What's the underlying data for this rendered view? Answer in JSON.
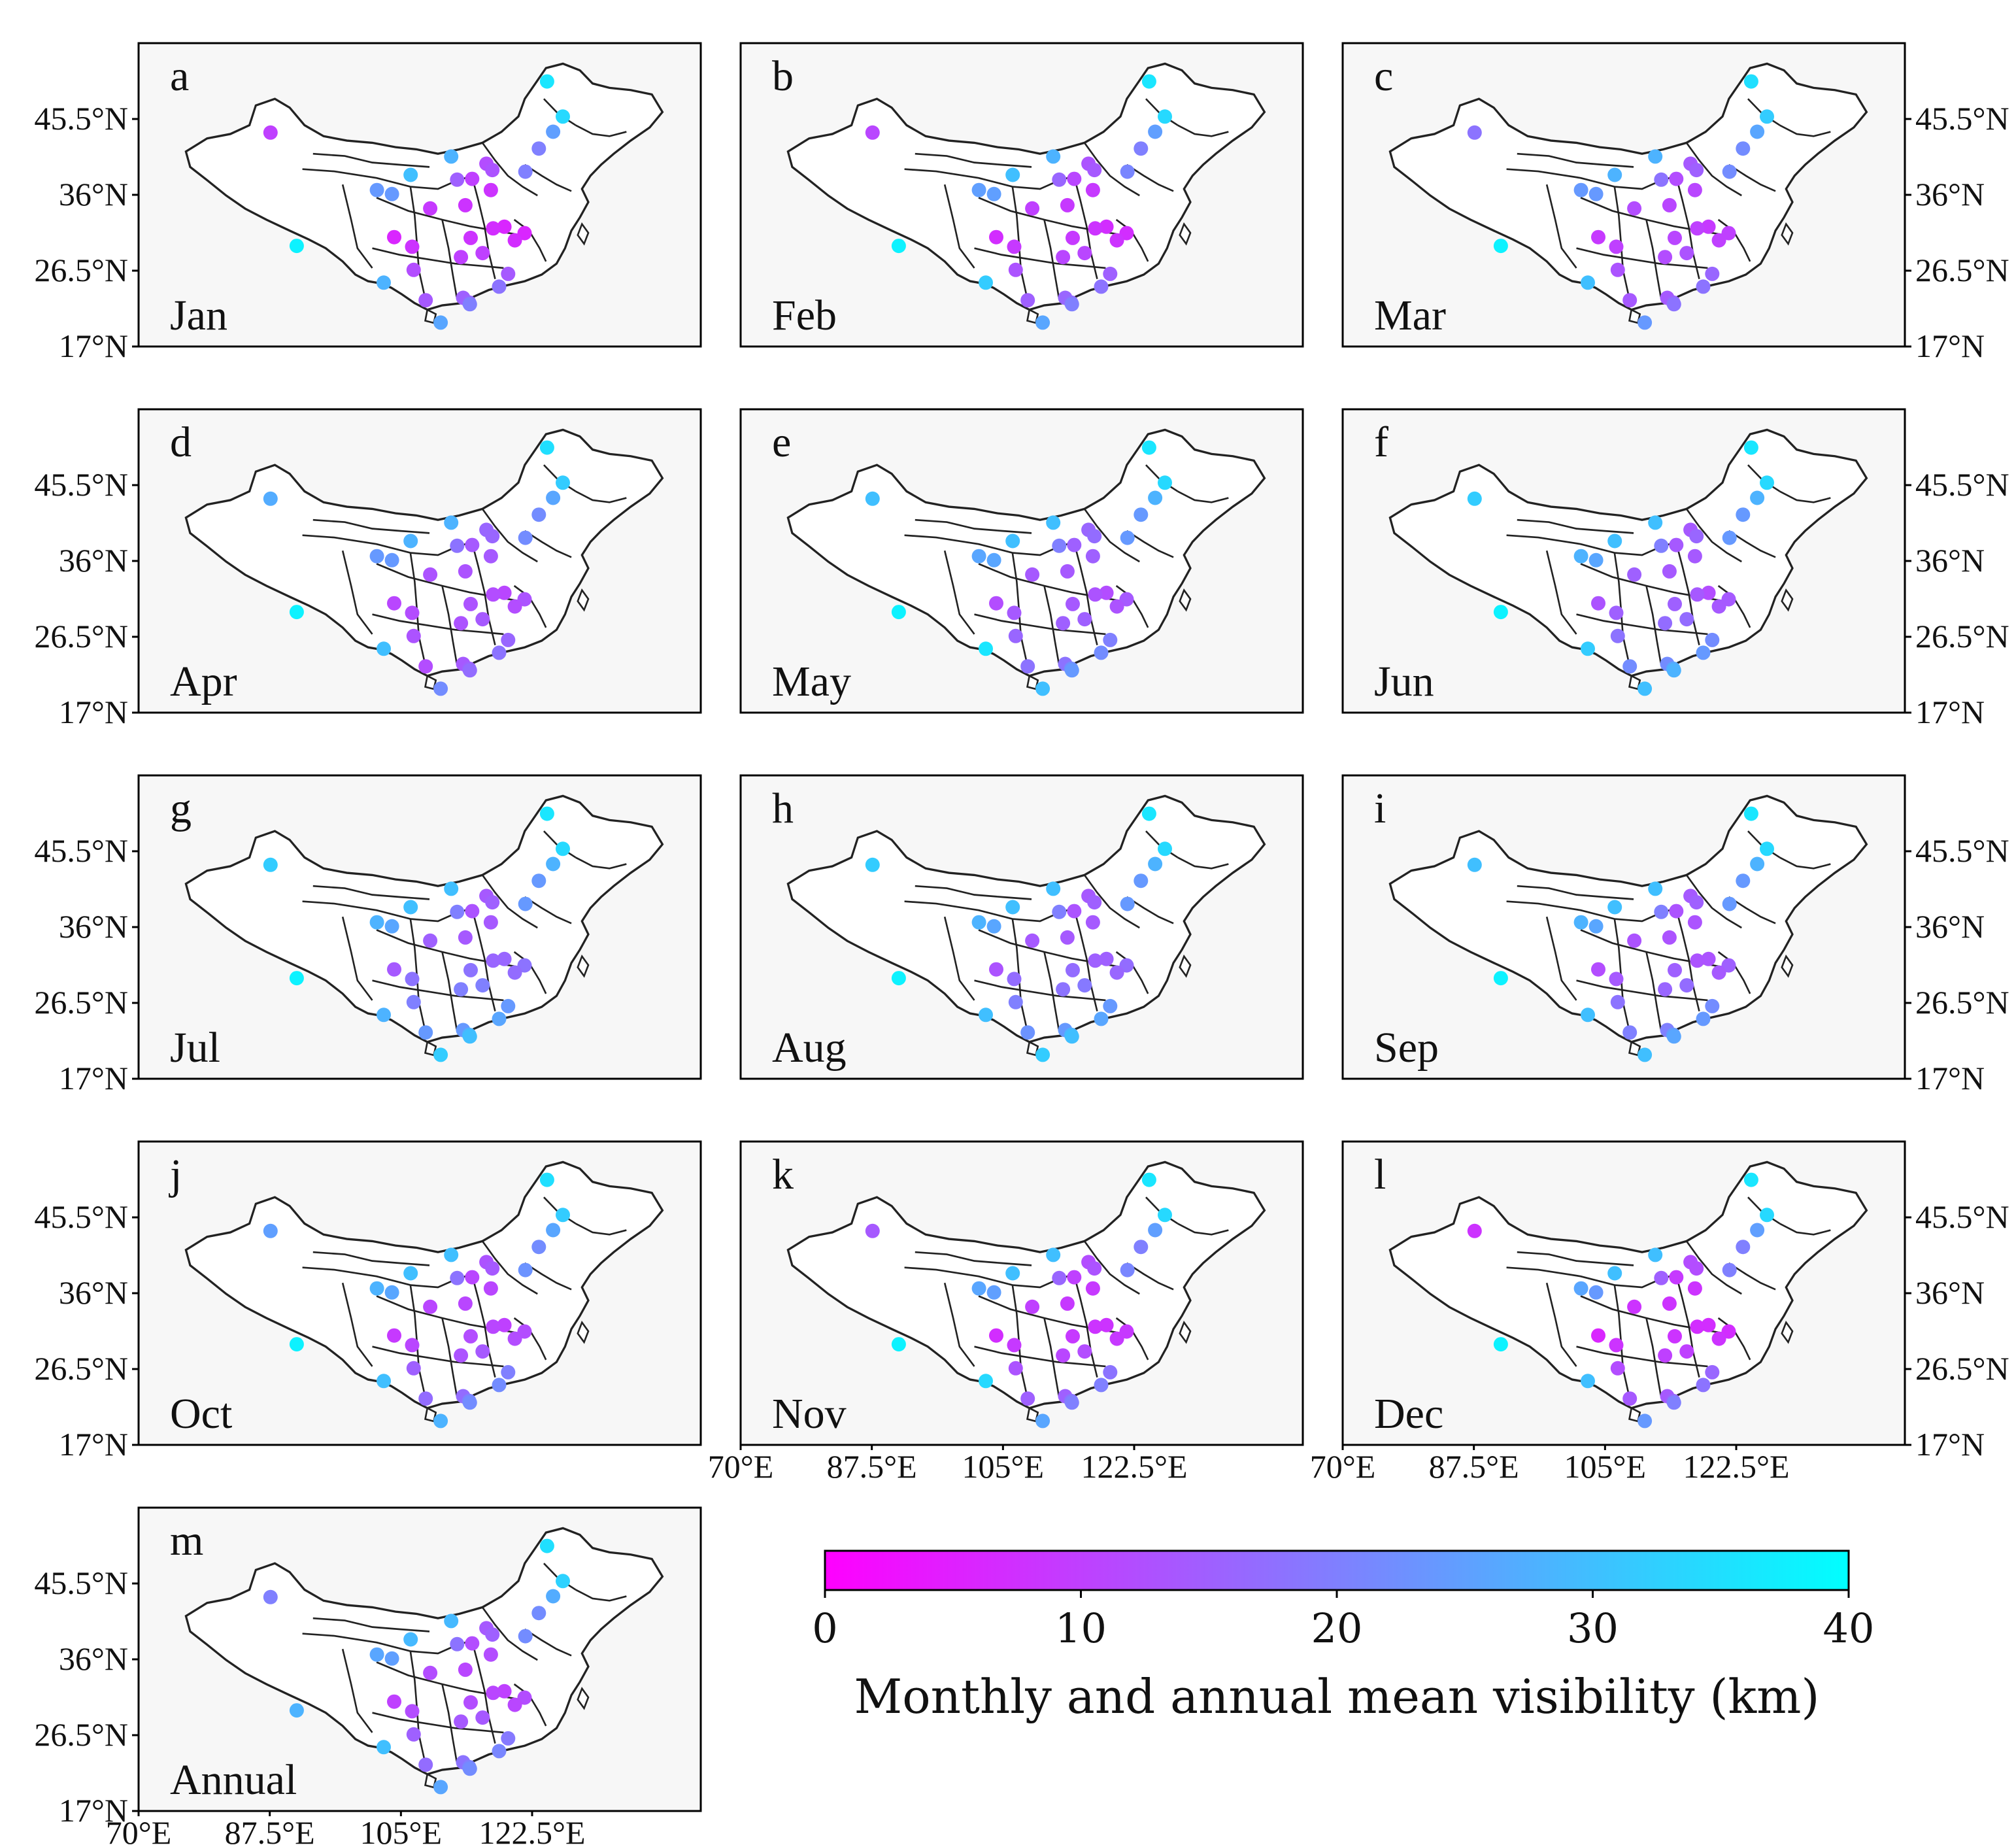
{
  "panels": [
    {
      "letter": "a",
      "label": "Jan",
      "left_lat": true,
      "right_lat": false,
      "lon": false,
      "vis": {
        "urumqi": 10,
        "lhasa": 38,
        "harbin": 34,
        "heilongjiang_n": 36,
        "changchun": 25,
        "shenyang": 20,
        "beijing": 12,
        "tianjin": 13,
        "shijiazhuang": 10,
        "jinan": 8,
        "taiyuan": 15,
        "hohhot": 28,
        "yinchuan": 30,
        "lanzhou": 24,
        "xining": 24,
        "xian": 9,
        "zhengzhou": 8,
        "nanjing": 6,
        "shanghai": 6,
        "hefei": 7,
        "hangzhou": 7,
        "wuhan": 8,
        "changsha": 10,
        "nanchang": 10,
        "chengdu": 6,
        "chongqing": 8,
        "guiyang": 12,
        "kunming": 28,
        "fuzhou": 14,
        "nanning": 14,
        "guangzhou": 15,
        "haikou": 26,
        "xm": 18,
        "sz": 16,
        "hongkong": 20,
        "dalian": 20
      }
    },
    {
      "letter": "b",
      "label": "Feb",
      "left_lat": false,
      "right_lat": false,
      "lon": false,
      "vis": {
        "urumqi": 11,
        "lhasa": 38,
        "harbin": 34,
        "heilongjiang_n": 36,
        "changchun": 25,
        "shenyang": 20,
        "beijing": 13,
        "tianjin": 14,
        "shijiazhuang": 11,
        "jinan": 9,
        "taiyuan": 16,
        "hohhot": 28,
        "yinchuan": 30,
        "lanzhou": 25,
        "xining": 25,
        "xian": 10,
        "zhengzhou": 9,
        "nanjing": 7,
        "shanghai": 7,
        "hefei": 8,
        "hangzhou": 8,
        "wuhan": 9,
        "changsha": 11,
        "nanchang": 11,
        "chengdu": 7,
        "chongqing": 9,
        "guiyang": 13,
        "kunming": 32,
        "fuzhou": 15,
        "nanning": 15,
        "guangzhou": 16,
        "haikou": 26,
        "xm": 18,
        "sz": 17,
        "hongkong": 20,
        "dalian": 21
      }
    },
    {
      "letter": "c",
      "label": "Mar",
      "left_lat": false,
      "right_lat": true,
      "lon": false,
      "vis": {
        "urumqi": 18,
        "lhasa": 38,
        "harbin": 32,
        "heilongjiang_n": 35,
        "changchun": 26,
        "shenyang": 22,
        "beijing": 14,
        "tianjin": 15,
        "shijiazhuang": 12,
        "jinan": 11,
        "taiyuan": 18,
        "hohhot": 28,
        "yinchuan": 28,
        "lanzhou": 24,
        "xining": 24,
        "xian": 12,
        "zhengzhou": 11,
        "nanjing": 9,
        "shanghai": 10,
        "hefei": 10,
        "hangzhou": 10,
        "wuhan": 11,
        "changsha": 12,
        "nanchang": 13,
        "chengdu": 9,
        "chongqing": 10,
        "guiyang": 13,
        "kunming": 30,
        "fuzhou": 16,
        "nanning": 14,
        "guangzhou": 14,
        "haikou": 24,
        "xm": 18,
        "sz": 15,
        "hongkong": 18,
        "dalian": 22
      }
    },
    {
      "letter": "d",
      "label": "Apr",
      "left_lat": true,
      "right_lat": false,
      "lon": false,
      "vis": {
        "urumqi": 27,
        "lhasa": 38,
        "harbin": 32,
        "heilongjiang_n": 35,
        "changchun": 26,
        "shenyang": 22,
        "beijing": 16,
        "tianjin": 16,
        "shijiazhuang": 14,
        "jinan": 14,
        "taiyuan": 18,
        "hohhot": 28,
        "yinchuan": 28,
        "lanzhou": 24,
        "xining": 24,
        "xian": 13,
        "zhengzhou": 13,
        "nanjing": 11,
        "shanghai": 13,
        "hefei": 12,
        "hangzhou": 12,
        "wuhan": 13,
        "changsha": 13,
        "nanchang": 14,
        "chengdu": 11,
        "chongqing": 12,
        "guiyang": 13,
        "kunming": 30,
        "fuzhou": 16,
        "nanning": 12,
        "guangzhou": 14,
        "haikou": 22,
        "xm": 18,
        "sz": 15,
        "hongkong": 17,
        "dalian": 22
      }
    },
    {
      "letter": "e",
      "label": "May",
      "left_lat": false,
      "right_lat": false,
      "lon": false,
      "vis": {
        "urumqi": 30,
        "lhasa": 38,
        "harbin": 34,
        "heilongjiang_n": 36,
        "changchun": 28,
        "shenyang": 24,
        "beijing": 16,
        "tianjin": 17,
        "shijiazhuang": 15,
        "jinan": 15,
        "taiyuan": 20,
        "hohhot": 30,
        "yinchuan": 30,
        "lanzhou": 26,
        "xining": 26,
        "xian": 14,
        "zhengzhou": 14,
        "nanjing": 12,
        "shanghai": 14,
        "hefei": 13,
        "hangzhou": 13,
        "wuhan": 14,
        "changsha": 15,
        "nanchang": 15,
        "chengdu": 12,
        "chongqing": 14,
        "guiyang": 16,
        "kunming": 36,
        "fuzhou": 20,
        "nanning": 18,
        "guangzhou": 18,
        "haikou": 30,
        "xm": 22,
        "sz": 22,
        "hongkong": 24,
        "dalian": 24
      }
    },
    {
      "letter": "f",
      "label": "Jun",
      "left_lat": false,
      "right_lat": true,
      "lon": false,
      "vis": {
        "urumqi": 32,
        "lhasa": 38,
        "harbin": 34,
        "heilongjiang_n": 36,
        "changchun": 28,
        "shenyang": 24,
        "beijing": 14,
        "tianjin": 16,
        "shijiazhuang": 14,
        "jinan": 14,
        "taiyuan": 20,
        "hohhot": 30,
        "yinchuan": 30,
        "lanzhou": 26,
        "xining": 28,
        "xian": 15,
        "zhengzhou": 14,
        "nanjing": 12,
        "shanghai": 14,
        "hefei": 14,
        "hangzhou": 14,
        "wuhan": 15,
        "changsha": 17,
        "nanchang": 17,
        "chengdu": 13,
        "chongqing": 15,
        "guiyang": 18,
        "kunming": 32,
        "fuzhou": 22,
        "nanning": 22,
        "guangzhou": 22,
        "haikou": 30,
        "xm": 24,
        "sz": 26,
        "hongkong": 28,
        "dalian": 24
      }
    },
    {
      "letter": "g",
      "label": "Jul",
      "left_lat": true,
      "right_lat": false,
      "lon": false,
      "vis": {
        "urumqi": 32,
        "lhasa": 38,
        "harbin": 34,
        "heilongjiang_n": 36,
        "changchun": 28,
        "shenyang": 24,
        "beijing": 14,
        "tianjin": 15,
        "shijiazhuang": 13,
        "jinan": 14,
        "taiyuan": 20,
        "hohhot": 30,
        "yinchuan": 30,
        "lanzhou": 26,
        "xining": 28,
        "xian": 15,
        "zhengzhou": 14,
        "nanjing": 16,
        "shanghai": 18,
        "hefei": 16,
        "hangzhou": 17,
        "wuhan": 18,
        "changsha": 20,
        "nanchang": 20,
        "chengdu": 14,
        "chongqing": 18,
        "guiyang": 20,
        "kunming": 28,
        "fuzhou": 24,
        "nanning": 24,
        "guangzhou": 24,
        "haikou": 32,
        "xm": 26,
        "sz": 28,
        "hongkong": 30,
        "dalian": 24
      }
    },
    {
      "letter": "h",
      "label": "Aug",
      "left_lat": false,
      "right_lat": false,
      "lon": false,
      "vis": {
        "urumqi": 32,
        "lhasa": 38,
        "harbin": 34,
        "heilongjiang_n": 36,
        "changchun": 28,
        "shenyang": 24,
        "beijing": 14,
        "tianjin": 15,
        "shijiazhuang": 13,
        "jinan": 14,
        "taiyuan": 20,
        "hohhot": 30,
        "yinchuan": 30,
        "lanzhou": 26,
        "xining": 28,
        "xian": 14,
        "zhengzhou": 14,
        "nanjing": 15,
        "shanghai": 17,
        "hefei": 15,
        "hangzhou": 16,
        "wuhan": 17,
        "changsha": 18,
        "nanchang": 19,
        "chengdu": 13,
        "chongqing": 17,
        "guiyang": 20,
        "kunming": 30,
        "fuzhou": 24,
        "nanning": 23,
        "guangzhou": 24,
        "haikou": 32,
        "xm": 26,
        "sz": 28,
        "hongkong": 30,
        "dalian": 24
      }
    },
    {
      "letter": "i",
      "label": "Sep",
      "left_lat": false,
      "right_lat": true,
      "lon": false,
      "vis": {
        "urumqi": 30,
        "lhasa": 38,
        "harbin": 34,
        "heilongjiang_n": 36,
        "changchun": 28,
        "shenyang": 24,
        "beijing": 14,
        "tianjin": 15,
        "shijiazhuang": 13,
        "jinan": 13,
        "taiyuan": 20,
        "hohhot": 30,
        "yinchuan": 30,
        "lanzhou": 26,
        "xining": 28,
        "xian": 13,
        "zhengzhou": 13,
        "nanjing": 13,
        "shanghai": 15,
        "hefei": 13,
        "hangzhou": 14,
        "wuhan": 15,
        "changsha": 16,
        "nanchang": 17,
        "chengdu": 12,
        "chongqing": 14,
        "guiyang": 18,
        "kunming": 30,
        "fuzhou": 22,
        "nanning": 20,
        "guangzhou": 20,
        "haikou": 30,
        "xm": 24,
        "sz": 24,
        "hongkong": 26,
        "dalian": 24
      }
    },
    {
      "letter": "j",
      "label": "Oct",
      "left_lat": true,
      "right_lat": false,
      "lon": false,
      "vis": {
        "urumqi": 25,
        "lhasa": 38,
        "harbin": 32,
        "heilongjiang_n": 35,
        "changchun": 26,
        "shenyang": 22,
        "beijing": 13,
        "tianjin": 14,
        "shijiazhuang": 11,
        "jinan": 11,
        "taiyuan": 18,
        "hohhot": 30,
        "yinchuan": 30,
        "lanzhou": 26,
        "xining": 28,
        "xian": 11,
        "zhengzhou": 11,
        "nanjing": 10,
        "shanghai": 12,
        "hefei": 11,
        "hangzhou": 12,
        "wuhan": 12,
        "changsha": 13,
        "nanchang": 14,
        "chengdu": 9,
        "chongqing": 11,
        "guiyang": 15,
        "kunming": 30,
        "fuzhou": 20,
        "nanning": 17,
        "guangzhou": 17,
        "haikou": 28,
        "xm": 22,
        "sz": 20,
        "hongkong": 22,
        "dalian": 23
      }
    },
    {
      "letter": "k",
      "label": "Nov",
      "left_lat": false,
      "right_lat": false,
      "lon": true,
      "vis": {
        "urumqi": 14,
        "lhasa": 38,
        "harbin": 34,
        "heilongjiang_n": 36,
        "changchun": 25,
        "shenyang": 20,
        "beijing": 12,
        "tianjin": 13,
        "shijiazhuang": 10,
        "jinan": 9,
        "taiyuan": 16,
        "hohhot": 30,
        "yinchuan": 30,
        "lanzhou": 25,
        "xining": 26,
        "xian": 10,
        "zhengzhou": 9,
        "nanjing": 8,
        "shanghai": 9,
        "hefei": 8,
        "hangzhou": 9,
        "wuhan": 9,
        "changsha": 11,
        "nanchang": 12,
        "chengdu": 7,
        "chongqing": 9,
        "guiyang": 13,
        "kunming": 34,
        "fuzhou": 18,
        "nanning": 15,
        "guangzhou": 15,
        "haikou": 26,
        "xm": 20,
        "sz": 18,
        "hongkong": 20,
        "dalian": 21
      }
    },
    {
      "letter": "l",
      "label": "Dec",
      "left_lat": false,
      "right_lat": true,
      "lon": true,
      "vis": {
        "urumqi": 8,
        "lhasa": 38,
        "harbin": 34,
        "heilongjiang_n": 36,
        "changchun": 25,
        "shenyang": 20,
        "beijing": 12,
        "tianjin": 12,
        "shijiazhuang": 9,
        "jinan": 8,
        "taiyuan": 15,
        "hohhot": 30,
        "yinchuan": 30,
        "lanzhou": 24,
        "xining": 26,
        "xian": 8,
        "zhengzhou": 8,
        "nanjing": 7,
        "shanghai": 7,
        "hefei": 7,
        "hangzhou": 8,
        "wuhan": 8,
        "changsha": 10,
        "nanchang": 10,
        "chengdu": 6,
        "chongqing": 8,
        "guiyang": 12,
        "kunming": 30,
        "fuzhou": 16,
        "nanning": 14,
        "guangzhou": 14,
        "haikou": 24,
        "xm": 18,
        "sz": 16,
        "hongkong": 20,
        "dalian": 20
      }
    },
    {
      "letter": "m",
      "label": "Annual",
      "left_lat": true,
      "right_lat": false,
      "lon": true,
      "vis": {
        "urumqi": 20,
        "lhasa": 28,
        "harbin": 33,
        "heilongjiang_n": 35,
        "changchun": 27,
        "shenyang": 22,
        "beijing": 14,
        "tianjin": 15,
        "shijiazhuang": 12,
        "jinan": 12,
        "taiyuan": 18,
        "hohhot": 29,
        "yinchuan": 29,
        "lanzhou": 25,
        "xining": 26,
        "xian": 12,
        "zhengzhou": 11,
        "nanjing": 10,
        "shanghai": 12,
        "hefei": 11,
        "hangzhou": 11,
        "wuhan": 12,
        "changsha": 14,
        "nanchang": 14,
        "chengdu": 10,
        "chongqing": 12,
        "guiyang": 15,
        "kunming": 30,
        "fuzhou": 19,
        "nanning": 17,
        "guangzhou": 18,
        "haikou": 26,
        "xm": 21,
        "sz": 20,
        "hongkong": 22,
        "dalian": 22
      }
    }
  ],
  "axes": {
    "lat_ticks": [
      {
        "value": 17,
        "label": "17°N"
      },
      {
        "value": 26.5,
        "label": "26.5°N"
      },
      {
        "value": 36,
        "label": "36°N"
      },
      {
        "value": 45.5,
        "label": "45.5°N"
      }
    ],
    "lon_ticks": [
      {
        "value": 70,
        "label": "70°E"
      },
      {
        "value": 87.5,
        "label": "87.5°E"
      },
      {
        "value": 105,
        "label": "105°E"
      },
      {
        "value": 122.5,
        "label": "122.5°E"
      }
    ],
    "lon_range": [
      70,
      145
    ],
    "lat_range": [
      17,
      55
    ]
  },
  "stations": {
    "urumqi": [
      87.6,
      43.8
    ],
    "lhasa": [
      91.1,
      29.6
    ],
    "harbin": [
      126.6,
      45.8
    ],
    "heilongjiang_n": [
      124.5,
      50.2
    ],
    "changchun": [
      125.3,
      43.9
    ],
    "shenyang": [
      123.4,
      41.8
    ],
    "dalian": [
      121.6,
      38.9
    ],
    "beijing": [
      116.4,
      39.9
    ],
    "tianjin": [
      117.2,
      39.1
    ],
    "shijiazhuang": [
      114.5,
      38.0
    ],
    "jinan": [
      117.0,
      36.6
    ],
    "taiyuan": [
      112.5,
      37.9
    ],
    "hohhot": [
      111.7,
      40.8
    ],
    "yinchuan": [
      106.3,
      38.5
    ],
    "lanzhou": [
      103.8,
      36.1
    ],
    "xining": [
      101.8,
      36.6
    ],
    "xian": [
      108.9,
      34.3
    ],
    "zhengzhou": [
      113.6,
      34.7
    ],
    "nanjing": [
      118.8,
      32.0
    ],
    "shanghai": [
      121.5,
      31.2
    ],
    "hefei": [
      117.3,
      31.8
    ],
    "hangzhou": [
      120.2,
      30.3
    ],
    "wuhan": [
      114.3,
      30.6
    ],
    "changsha": [
      113.0,
      28.2
    ],
    "nanchang": [
      115.9,
      28.7
    ],
    "chengdu": [
      104.1,
      30.7
    ],
    "chongqing": [
      106.5,
      29.5
    ],
    "guiyang": [
      106.7,
      26.6
    ],
    "kunming": [
      102.7,
      25.0
    ],
    "fuzhou": [
      119.3,
      26.1
    ],
    "nanning": [
      108.3,
      22.8
    ],
    "guangzhou": [
      113.3,
      23.1
    ],
    "haikou": [
      110.3,
      20.0
    ],
    "xm": [
      118.1,
      24.5
    ],
    "sz": [
      114.1,
      22.5
    ],
    "hongkong": [
      114.2,
      22.3
    ]
  },
  "colorbar": {
    "min": 0,
    "max": 40,
    "ticks": [
      0,
      10,
      20,
      30,
      40
    ],
    "tick_labels": [
      "0",
      "10",
      "20",
      "30",
      "40"
    ],
    "start_color": "#ff00ff",
    "end_color": "#00ffff",
    "label": "Monthly and annual mean visibility (km)"
  },
  "colors": {
    "panel_bg": "#f7f7f7",
    "border": "#000000",
    "land": "#ffffff"
  }
}
